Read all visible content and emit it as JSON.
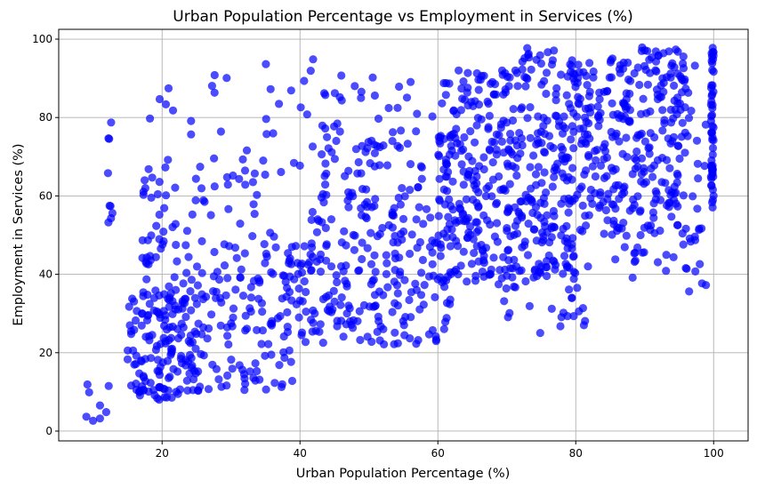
{
  "chart_data": {
    "type": "scatter",
    "title": "Urban Population Percentage vs Employment in Services (%)",
    "xlabel": "Urban Population Percentage (%)",
    "ylabel": "Employment in Services (%)",
    "xlim": [
      5,
      105
    ],
    "ylim": [
      -2.5,
      102.5
    ],
    "xticks": [
      20,
      40,
      60,
      80,
      100
    ],
    "yticks": [
      0,
      20,
      40,
      60,
      80,
      100
    ],
    "grid": true,
    "color": "#0000ff",
    "seed": 20240517,
    "clusters": [
      {
        "n": 8,
        "x": [
          9,
          13
        ],
        "y": [
          2,
          14
        ]
      },
      {
        "n": 9,
        "x": [
          12,
          13
        ],
        "y": [
          52,
          81
        ]
      },
      {
        "n": 150,
        "x": [
          15,
          25
        ],
        "y": [
          8,
          35
        ]
      },
      {
        "n": 50,
        "x": [
          17,
          25
        ],
        "y": [
          35,
          65
        ]
      },
      {
        "n": 10,
        "x": [
          18,
          25
        ],
        "y": [
          66,
          88
        ]
      },
      {
        "n": 140,
        "x": [
          25,
          40
        ],
        "y": [
          10,
          48
        ]
      },
      {
        "n": 30,
        "x": [
          25,
          40
        ],
        "y": [
          48,
          70
        ]
      },
      {
        "n": 22,
        "x": [
          26,
          45
        ],
        "y": [
          70,
          95
        ]
      },
      {
        "n": 220,
        "x": [
          40,
          62
        ],
        "y": [
          22,
          58
        ]
      },
      {
        "n": 70,
        "x": [
          42,
          62
        ],
        "y": [
          58,
          78
        ]
      },
      {
        "n": 25,
        "x": [
          43,
          62
        ],
        "y": [
          78,
          91
        ]
      },
      {
        "n": 300,
        "x": [
          60,
          80
        ],
        "y": [
          38,
          75
        ]
      },
      {
        "n": 110,
        "x": [
          62,
          82
        ],
        "y": [
          75,
          92
        ]
      },
      {
        "n": 40,
        "x": [
          66,
          82
        ],
        "y": [
          25,
          45
        ]
      },
      {
        "n": 30,
        "x": [
          72,
          82
        ],
        "y": [
          90,
          98
        ]
      },
      {
        "n": 240,
        "x": [
          80,
          96
        ],
        "y": [
          50,
          92
        ]
      },
      {
        "n": 40,
        "x": [
          85,
          96
        ],
        "y": [
          88,
          98
        ]
      },
      {
        "n": 25,
        "x": [
          85,
          96
        ],
        "y": [
          39,
          55
        ]
      },
      {
        "n": 25,
        "x": [
          96,
          99
        ],
        "y": [
          35,
          96
        ]
      },
      {
        "n": 55,
        "x": [
          99.6,
          100
        ],
        "y": [
          57,
          98
        ]
      }
    ]
  }
}
